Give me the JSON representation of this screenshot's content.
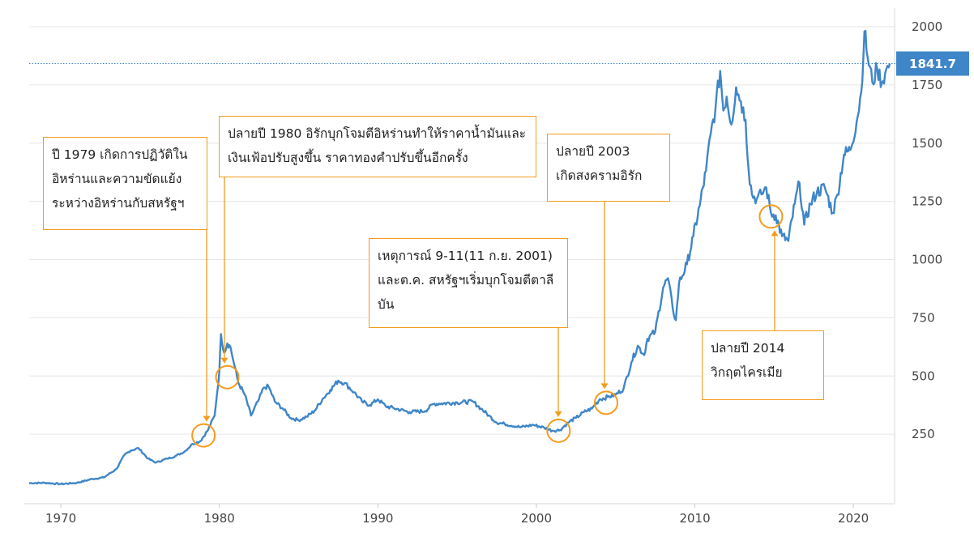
{
  "colors": {
    "line": "#3f86c8",
    "accent": "#f59b1d",
    "price_tag": "#3f86c8",
    "grid": "#e6e6e6"
  },
  "price_tag": {
    "label": "1841.7",
    "value": 1841.7
  },
  "annotations": [
    {
      "id": "iran-revolution",
      "lines": [
        "ปี 1979 เกิดการปฏิวัติใน",
        "อิหร่านและความขัดแย้ง",
        "ระหว่างอิหร่านกับสหรัฐฯ"
      ],
      "x": 1979.0,
      "y": 245
    },
    {
      "id": "iraq-invades-iran",
      "lines": [
        "ปลายปี 1980 อิรักบุกโจมตีอิหร่านทำให้ราคาน้ำมันและ",
        "เงินเฟ้อปรับสูงขึ้น ราคาทองคำปรับขึ้นอีกครั้ง"
      ],
      "x": 1980.5,
      "y": 495
    },
    {
      "id": "sept-11",
      "lines": [
        "เหตุการณ์ 9-11(11 ก.ย. 2001)",
        "และต.ค. สหรัฐฯเริ่มบุกโจมตีตาลี",
        "บัน"
      ],
      "x": 2001.4,
      "y": 265
    },
    {
      "id": "iraq-war",
      "lines": [
        "ปลายปี 2003",
        "เกิดสงครามอิรัก"
      ],
      "x": 2004.4,
      "y": 385
    },
    {
      "id": "crimea-crisis",
      "lines": [
        "ปลายปี 2014",
        "วิกฤตไครเมีย"
      ],
      "x": 2014.8,
      "y": 1185
    }
  ],
  "chart_data": {
    "type": "line",
    "title": "",
    "xlabel": "",
    "ylabel": "",
    "xlim": [
      1968,
      2022.6
    ],
    "ylim": [
      0,
      2080
    ],
    "x_ticks": [
      1970,
      1980,
      1990,
      2000,
      2010,
      2020
    ],
    "x_tick_labels": [
      "1970",
      "1980",
      "1990",
      "2000",
      "2010",
      "2020"
    ],
    "y_ticks": [
      250,
      500,
      750,
      1000,
      1250,
      1500,
      1750,
      2000
    ],
    "y_tick_labels": [
      "250",
      "500",
      "750",
      "1000",
      "1250",
      "1500",
      "1750",
      "2000"
    ],
    "grid": "horizontal",
    "series": [
      {
        "x": [
          1968.0,
          1969.0,
          1970.0,
          1971.0,
          1972.0,
          1972.7,
          1973.5,
          1974.0,
          1974.4,
          1974.9,
          1975.5,
          1976.0,
          1976.7,
          1977.2,
          1977.8,
          1978.3,
          1978.8,
          1979.3,
          1979.7,
          1980.0,
          1980.1,
          1980.3,
          1980.5,
          1980.7,
          1980.9,
          1981.2,
          1981.6,
          1982.0,
          1982.5,
          1982.8,
          1983.1,
          1983.5,
          1984.0,
          1984.5,
          1985.0,
          1985.5,
          1986.0,
          1986.5,
          1987.0,
          1987.5,
          1987.9,
          1988.5,
          1989.0,
          1989.5,
          1990.0,
          1990.5,
          1991.0,
          1992.0,
          1993.0,
          1993.5,
          1994.0,
          1995.0,
          1996.0,
          1996.5,
          1997.0,
          1997.5,
          1998.0,
          1999.0,
          1999.8,
          2000.5,
          2001.0,
          2001.5,
          2002.0,
          2002.5,
          2003.0,
          2003.5,
          2004.0,
          2004.5,
          2005.0,
          2005.5,
          2006.0,
          2006.4,
          2006.8,
          2007.0,
          2007.5,
          2008.0,
          2008.3,
          2008.6,
          2008.8,
          2009.0,
          2009.5,
          2009.9,
          2010.3,
          2010.7,
          2011.0,
          2011.3,
          2011.6,
          2011.8,
          2012.0,
          2012.3,
          2012.6,
          2012.9,
          2013.2,
          2013.4,
          2013.6,
          2013.9,
          2014.2,
          2014.5,
          2014.8,
          2015.1,
          2015.5,
          2015.9,
          2016.3,
          2016.6,
          2016.9,
          2017.3,
          2017.7,
          2018.2,
          2018.7,
          2019.0,
          2019.4,
          2019.8,
          2020.2,
          2020.5,
          2020.7,
          2020.9,
          2021.2,
          2021.5,
          2021.8,
          2022.0,
          2022.3
        ],
        "y": [
          40,
          41,
          36,
          41,
          58,
          64,
          100,
          160,
          180,
          190,
          145,
          128,
          145,
          155,
          175,
          208,
          220,
          270,
          330,
          520,
          680,
          600,
          640,
          625,
          560,
          470,
          420,
          330,
          400,
          450,
          455,
          390,
          360,
          320,
          310,
          325,
          350,
          400,
          440,
          480,
          470,
          430,
          390,
          375,
          400,
          370,
          362,
          345,
          350,
          380,
          382,
          386,
          390,
          360,
          330,
          300,
          294,
          280,
          290,
          278,
          265,
          268,
          300,
          320,
          345,
          360,
          400,
          410,
          420,
          445,
          560,
          630,
          590,
          660,
          690,
          880,
          920,
          790,
          740,
          900,
          980,
          1100,
          1230,
          1380,
          1540,
          1650,
          1810,
          1640,
          1700,
          1580,
          1740,
          1680,
          1600,
          1380,
          1280,
          1260,
          1280,
          1310,
          1200,
          1190,
          1100,
          1080,
          1240,
          1330,
          1150,
          1240,
          1290,
          1310,
          1200,
          1280,
          1450,
          1470,
          1590,
          1720,
          1980,
          1870,
          1760,
          1820,
          1760,
          1800,
          1841.7
        ]
      }
    ]
  }
}
